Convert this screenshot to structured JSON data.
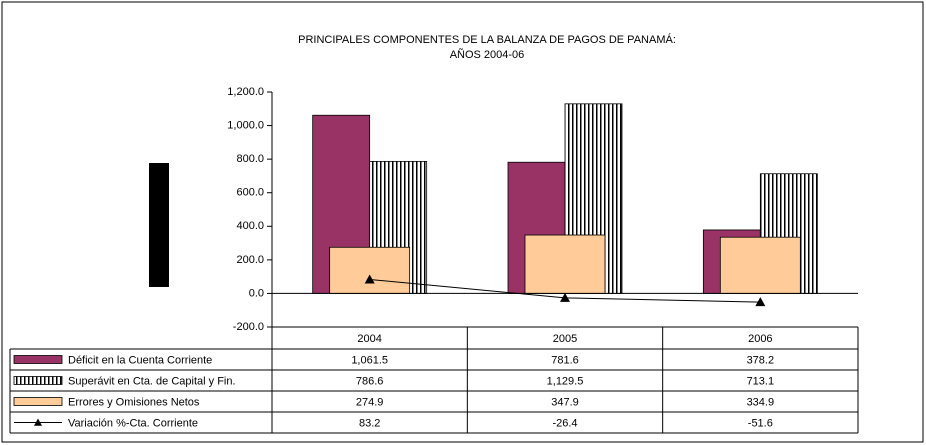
{
  "chart_data": {
    "type": "bar",
    "title": "PRINCIPALES COMPONENTES DE LA BALANZA DE PAGOS DE PANAMÁ:",
    "subtitle": "AÑOS 2004-06",
    "categories": [
      "2004",
      "2005",
      "2006"
    ],
    "series": [
      {
        "name": "Déficit en la Cuenta Corriente",
        "type": "bar",
        "color": "#993366",
        "values": [
          1061.5,
          781.6,
          378.2
        ],
        "value_labels": [
          "1,061.5",
          "781.6",
          "378.2"
        ]
      },
      {
        "name": "Superávit en Cta. de Capital y Fin.",
        "type": "bar",
        "color": "#000000",
        "hatch": "vertical",
        "values": [
          786.6,
          1129.5,
          713.1
        ],
        "value_labels": [
          "786.6",
          "1,129.5",
          "713.1"
        ]
      },
      {
        "name": "Errores y Omisiones Netos",
        "type": "bar",
        "color": "#ffcc99",
        "values": [
          274.9,
          347.9,
          334.9
        ],
        "value_labels": [
          "274.9",
          "347.9",
          "334.9"
        ]
      },
      {
        "name": "Variación %-Cta. Corriente",
        "type": "line",
        "color": "#000000",
        "marker": "triangle",
        "values": [
          83.2,
          -26.4,
          -51.6
        ],
        "value_labels": [
          "83.2",
          "-26.4",
          "-51.6"
        ]
      }
    ],
    "ylim": [
      -200,
      1200
    ],
    "yticks": [
      {
        "value": -200,
        "label": "-200.0"
      },
      {
        "value": 0,
        "label": "0.0"
      },
      {
        "value": 200,
        "label": "200.0"
      },
      {
        "value": 400,
        "label": "400.0"
      },
      {
        "value": 600,
        "label": "600.0"
      },
      {
        "value": 800,
        "label": "800.0"
      },
      {
        "value": 1000,
        "label": "1,000.0"
      },
      {
        "value": 1200,
        "label": "1,200.0"
      }
    ],
    "grid": false,
    "data_table": true
  }
}
